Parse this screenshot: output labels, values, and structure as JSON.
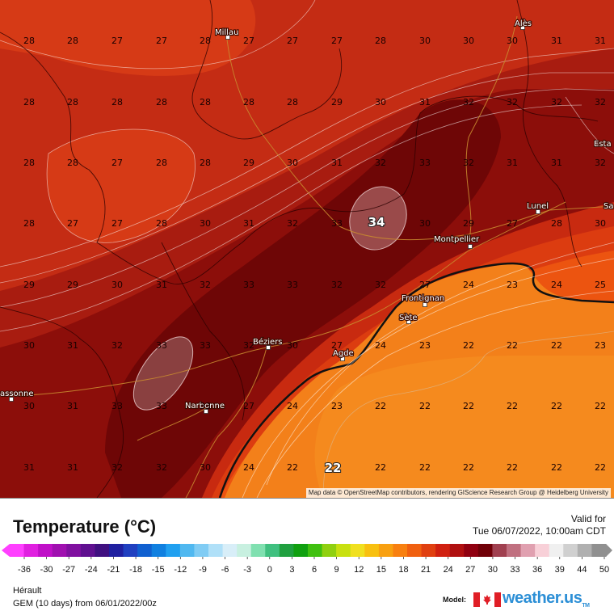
{
  "map": {
    "cities": [
      {
        "name": "Millau"
      },
      {
        "name": "Alès"
      },
      {
        "name": "Esta"
      },
      {
        "name": "Sa"
      },
      {
        "name": "Lunel"
      },
      {
        "name": "Montpellier"
      },
      {
        "name": "Frontignan"
      },
      {
        "name": "Sète"
      },
      {
        "name": "Béziers"
      },
      {
        "name": "Agde"
      },
      {
        "name": "Narbonne"
      },
      {
        "name": "assonne"
      }
    ],
    "grid_rows": [
      [
        "28",
        "28",
        "27",
        "27",
        "28",
        "27",
        "27",
        "27",
        "28",
        "30",
        "30",
        "30",
        "31",
        "31"
      ],
      [
        "28",
        "28",
        "28",
        "28",
        "28",
        "28",
        "28",
        "29",
        "30",
        "31",
        "32",
        "32",
        "32",
        "32"
      ],
      [
        "28",
        "28",
        "27",
        "28",
        "28",
        "29",
        "30",
        "31",
        "32",
        "33",
        "32",
        "31",
        "31",
        "32"
      ],
      [
        "28",
        "27",
        "27",
        "28",
        "30",
        "31",
        "32",
        "33",
        "34",
        "30",
        "29",
        "27",
        "28",
        "30"
      ],
      [
        "29",
        "29",
        "30",
        "31",
        "32",
        "33",
        "33",
        "32",
        "32",
        "27",
        "24",
        "23",
        "24",
        "25"
      ],
      [
        "30",
        "31",
        "32",
        "33",
        "33",
        "32",
        "30",
        "27",
        "24",
        "23",
        "22",
        "22",
        "22",
        "23"
      ],
      [
        "30",
        "31",
        "33",
        "33",
        "33",
        "27",
        "24",
        "23",
        "22",
        "22",
        "22",
        "22",
        "22",
        "22"
      ],
      [
        "31",
        "31",
        "32",
        "32",
        "30",
        "24",
        "22",
        "22",
        "22",
        "22",
        "22",
        "22",
        "22",
        "22"
      ]
    ],
    "highlight_values": [
      "34",
      "22"
    ],
    "attribution": "Map data © OpenStreetMap contributors, rendering GIScience Research Group @ Heidelberg University"
  },
  "legend": {
    "title": "Temperature (°C)",
    "valid_label": "Valid for",
    "valid_time": "Tue 06/07/2022, 10:00am CDT",
    "ticks": [
      "-36",
      "-30",
      "-27",
      "-24",
      "-21",
      "-18",
      "-15",
      "-12",
      "-9",
      "-6",
      "-3",
      "0",
      "3",
      "6",
      "9",
      "12",
      "15",
      "18",
      "21",
      "24",
      "27",
      "30",
      "33",
      "36",
      "39",
      "44",
      "50"
    ],
    "colors": [
      "#ff40ff",
      "#e020e0",
      "#c010c8",
      "#a010b0",
      "#8010a0",
      "#601090",
      "#401080",
      "#2020a0",
      "#2040c0",
      "#1060d0",
      "#1080e0",
      "#20a0f0",
      "#50b8f0",
      "#80ccf4",
      "#b0e0f8",
      "#d8eef8",
      "#c8f0e0",
      "#80e0b0",
      "#40c080",
      "#20a040",
      "#10a010",
      "#40c010",
      "#90d010",
      "#c8e010",
      "#f0e020",
      "#f8c010",
      "#f8a010",
      "#f88010",
      "#f06010",
      "#e04010",
      "#d02010",
      "#b01010",
      "#900010",
      "#700008",
      "#a04050",
      "#c07080",
      "#e0a0b0",
      "#f8d0d8",
      "#f0f0f0",
      "#d0d0d0",
      "#b0b0b0",
      "#909090"
    ]
  },
  "footer": {
    "region": "Hérault",
    "model_run": "GEM (10 days) from 06/01/2022/00z",
    "model_label": "Model:",
    "brand": "weather.us",
    "brand_tm": "TM"
  }
}
